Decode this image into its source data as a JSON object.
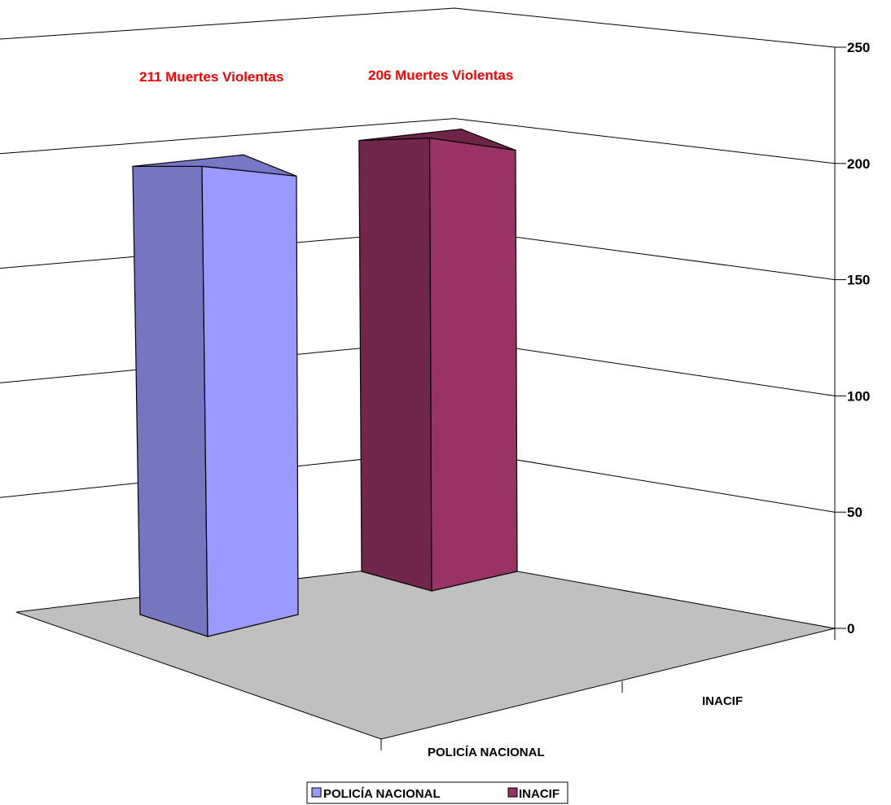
{
  "chart_data": {
    "type": "bar",
    "title": "",
    "xlabel": "",
    "ylabel": "",
    "categories": [
      "POLICÍA NACIONAL",
      "INACIF"
    ],
    "values": [
      211,
      206
    ],
    "ylim": [
      0,
      250
    ],
    "y_ticks": [
      "0",
      "50",
      "100",
      "150",
      "200",
      "250"
    ],
    "data_labels": [
      "211 Muertes Violentas",
      "206 Muertes Violentas"
    ],
    "x_category_labels": [
      "POLICÍA NACIONAL",
      "INACIF"
    ],
    "legend": {
      "position": "bottom",
      "entries": [
        "POLICÍA NACIONAL",
        "INACIF"
      ]
    },
    "grid": true,
    "style": "3d-column",
    "colors": {
      "series_front": [
        "#9999ff",
        "#993366"
      ],
      "series_side": [
        "#7575c0",
        "#71264c"
      ],
      "series_top": [
        "#7777c8",
        "#6e2548"
      ],
      "data_label": "#ff0000",
      "floor": "#c0c0c0"
    }
  }
}
